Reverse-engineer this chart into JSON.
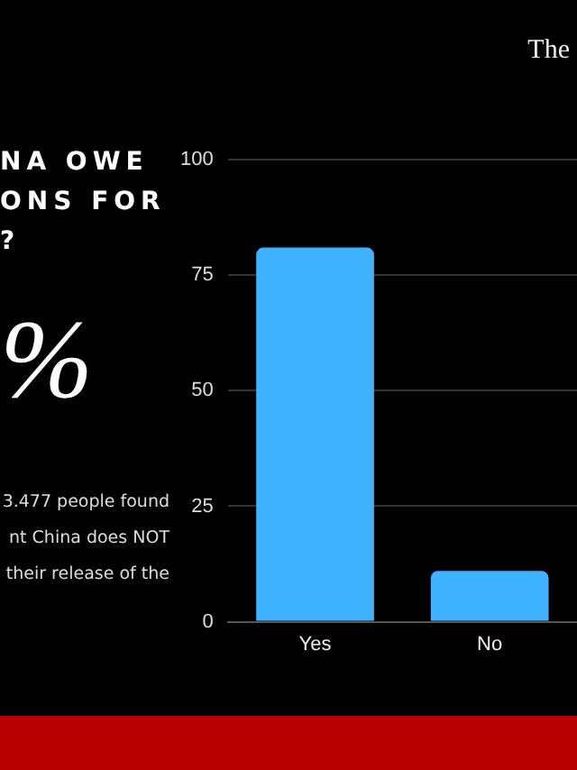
{
  "chart_data": {
    "type": "bar",
    "title": "The",
    "annotations": [
      "NA OWE",
      "ONS FOR",
      "?",
      "%",
      "3.477 people found",
      "nt China does NOT",
      "their release of the"
    ],
    "categories": [
      "Yes",
      "No"
    ],
    "values": [
      81,
      11
    ],
    "color": "#3fb3ff",
    "ylim": [
      0,
      100
    ],
    "yticks": [
      0,
      25,
      50,
      75,
      100
    ],
    "grid": "y"
  }
}
